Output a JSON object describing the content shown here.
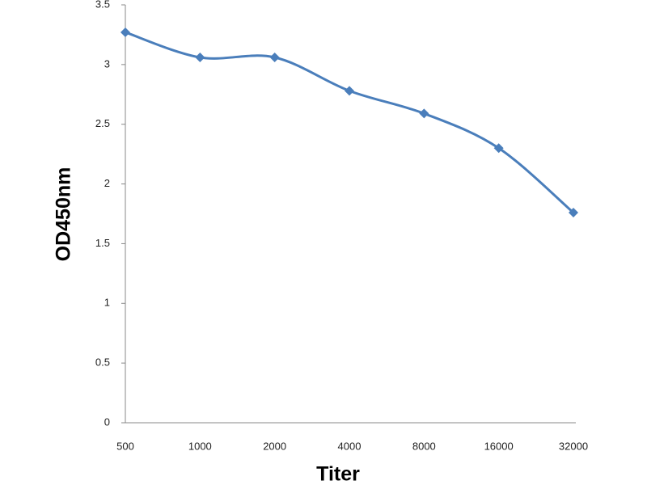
{
  "chart_data": {
    "type": "line",
    "x_label": "Titer",
    "y_label": "OD450nm",
    "categories": [
      "500",
      "1000",
      "2000",
      "4000",
      "8000",
      "16000",
      "32000"
    ],
    "series": [
      {
        "name": null,
        "color": "#4a7ebb",
        "values": [
          3.27,
          3.06,
          3.06,
          2.78,
          2.59,
          2.3,
          1.76
        ]
      }
    ],
    "ylim": [
      0,
      3.5
    ],
    "yticks": [
      0,
      0.5,
      1,
      1.5,
      2,
      2.5,
      3,
      3.5
    ],
    "smooth": true,
    "marker": "diamond",
    "grid": false
  }
}
